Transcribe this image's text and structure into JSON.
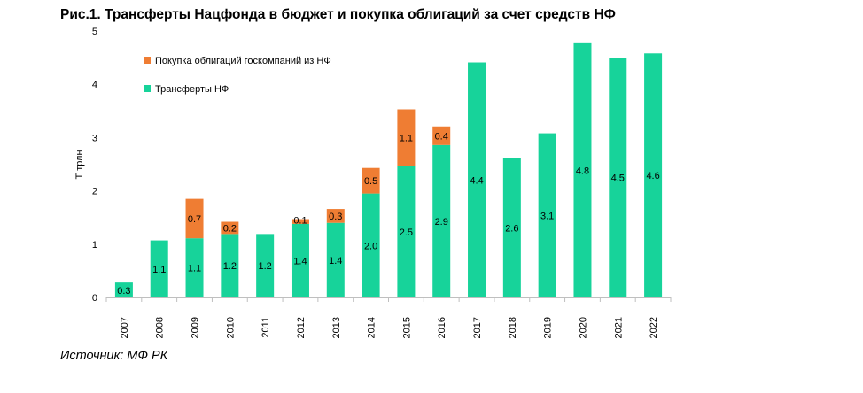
{
  "title": "Рис.1. Трансферты Нацфонда в бюджет и покупка облигаций за счет средств НФ",
  "source": "Источник: МФ РК",
  "colors": {
    "transfers": "#17d39a",
    "bonds": "#ef7d33"
  },
  "chart_data": {
    "type": "bar",
    "stacked": true,
    "title": "Рис.1. Трансферты Нацфонда в бюджет и покупка облигаций за счет средств НФ",
    "xlabel": "",
    "ylabel": "Т трлн",
    "ylim": [
      0,
      5
    ],
    "yticks": [
      "0",
      "1",
      "2",
      "3",
      "4",
      "5"
    ],
    "legend_position": "top-left",
    "categories": [
      "2007",
      "2008",
      "2009",
      "2010",
      "2011",
      "2012",
      "2013",
      "2014",
      "2015",
      "2016",
      "2017",
      "2018",
      "2019",
      "2020",
      "2021",
      "2022"
    ],
    "series": [
      {
        "name": "Трансферты НФ",
        "values": [
          0.28,
          1.07,
          1.11,
          1.19,
          1.19,
          1.38,
          1.4,
          1.95,
          2.46,
          2.86,
          4.41,
          2.61,
          3.08,
          4.77,
          4.5,
          4.58
        ],
        "labels": [
          "0.3",
          "1.1",
          "1.1",
          "1.2",
          "1.2",
          "1.4",
          "1.4",
          "2.0",
          "2.5",
          "2.9",
          "4.4",
          "2.6",
          "3.1",
          "4.8",
          "4.5",
          "4.6"
        ]
      },
      {
        "name": "Покупка облигаций госкомпаний из НФ",
        "values": [
          0,
          0,
          0.74,
          0.23,
          0,
          0.09,
          0.26,
          0.48,
          1.07,
          0.35,
          0,
          0,
          0,
          0,
          0,
          0
        ],
        "labels": [
          "",
          "",
          "0.7",
          "0.2",
          "",
          "0.1",
          "0.3",
          "0.5",
          "1.1",
          "0.4",
          "",
          "",
          "",
          "",
          "",
          ""
        ]
      }
    ]
  }
}
